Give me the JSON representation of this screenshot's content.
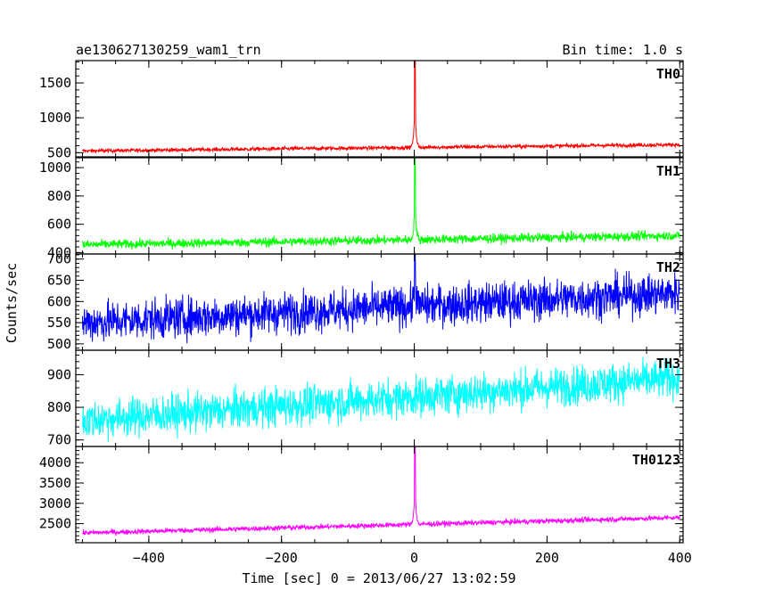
{
  "chart_data": {
    "type": "line",
    "title": "ae130627130259_wam1_trn",
    "subtitle": "Bin time: 1.0 s",
    "xlabel": "Time [sec] 0 = 2013/06/27 13:02:59",
    "ylabel": "Counts/sec",
    "xlim": [
      -510,
      405
    ],
    "x_ticks": [
      -400,
      -200,
      0,
      200,
      400
    ],
    "x_tick_labels": [
      "−400",
      "−200",
      "0",
      "200",
      "400"
    ],
    "panels": [
      {
        "name": "TH0",
        "color": "#ff0000",
        "ylim": [
          440,
          1820
        ],
        "y_ticks": [
          500,
          1000,
          1500
        ],
        "y_tick_labels": [
          "500",
          "1000",
          "1500"
        ],
        "baseline_start": 525,
        "baseline_end": 615,
        "noise": 14,
        "peak": 1820,
        "peak_x": 1
      },
      {
        "name": "TH1",
        "color": "#00ff00",
        "ylim": [
          390,
          1070
        ],
        "y_ticks": [
          400,
          600,
          800,
          1000
        ],
        "y_tick_labels": [
          "400",
          "600",
          "800",
          "1000"
        ],
        "baseline_start": 455,
        "baseline_end": 520,
        "noise": 16,
        "peak": 1070,
        "peak_x": 1
      },
      {
        "name": "TH2",
        "color": "#0000ff",
        "ylim": [
          485,
          712
        ],
        "y_ticks": [
          500,
          550,
          600,
          650,
          700
        ],
        "y_tick_labels": [
          "500",
          "550",
          "600",
          "650",
          "700"
        ],
        "baseline_start": 550,
        "baseline_end": 620,
        "noise": 24,
        "peak": 712,
        "peak_x": 1
      },
      {
        "name": "TH3",
        "color": "#00ffff",
        "ylim": [
          680,
          975
        ],
        "y_ticks": [
          700,
          800,
          900
        ],
        "y_tick_labels": [
          "700",
          "800",
          "900"
        ],
        "baseline_start": 760,
        "baseline_end": 890,
        "noise": 30,
        "peak": 0,
        "peak_x": 1
      },
      {
        "name": "TH0123",
        "color": "#ff00ff",
        "ylim": [
          2030,
          4400
        ],
        "y_ticks": [
          2500,
          3000,
          3500,
          4000
        ],
        "y_tick_labels": [
          "2500",
          "3000",
          "3500",
          "4000"
        ],
        "baseline_start": 2270,
        "baseline_end": 2650,
        "noise": 32,
        "peak": 4400,
        "peak_x": 1
      }
    ],
    "grid": false,
    "legend": "none"
  }
}
